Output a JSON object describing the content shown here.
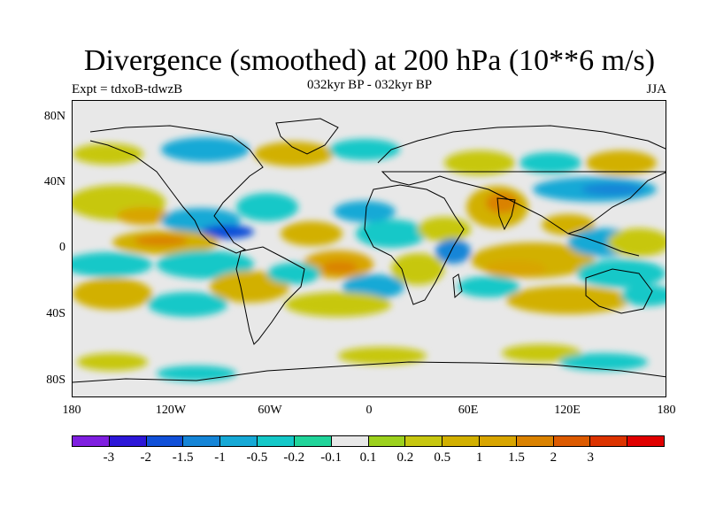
{
  "title": "Divergence (smoothed) at 200 hPa (10**6 m/s)",
  "subtitle": "032kyr BP - 032kyr BP",
  "left_string": "Expt = tdxoB-tdwzB",
  "right_string": "JJA",
  "lat_labels": [
    "80N",
    "40N",
    "0",
    "40S",
    "80S"
  ],
  "lon_labels": [
    "180",
    "120W",
    "60W",
    "0",
    "60E",
    "120E",
    "180"
  ],
  "colorbar": {
    "colors": [
      "#7f1fe0",
      "#2d17d8",
      "#1150d8",
      "#1585d7",
      "#16a9d6",
      "#14c8c8",
      "#20d49a",
      "#e8e8e8",
      "#9cd11d",
      "#c7c710",
      "#d2b000",
      "#d8a500",
      "#da8200",
      "#dc5a00",
      "#dc3300",
      "#e00000"
    ],
    "labels": [
      "-3",
      "-2",
      "-1.5",
      "-1",
      "-0.5",
      "-0.2",
      "-0.1",
      "0.1",
      "0.2",
      "0.5",
      "1",
      "1.5",
      "2",
      "3"
    ]
  }
}
